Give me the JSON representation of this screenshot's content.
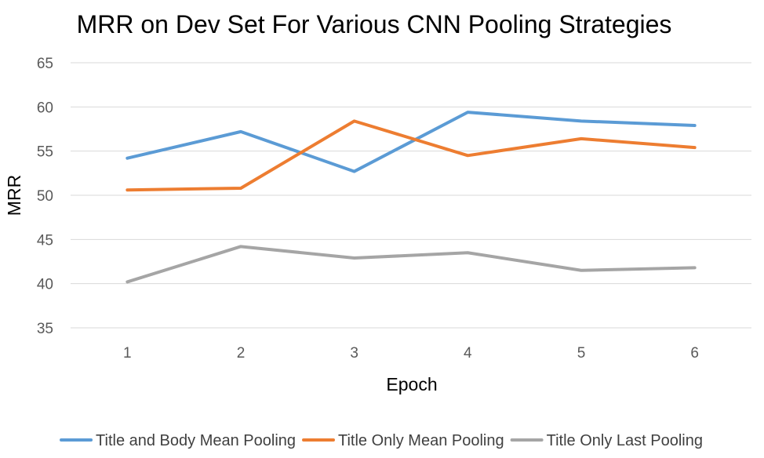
{
  "chart_data": {
    "type": "line",
    "title": "MRR on Dev Set For Various CNN Pooling Strategies",
    "xlabel": "Epoch",
    "ylabel": "MRR",
    "categories": [
      "1",
      "2",
      "3",
      "4",
      "5",
      "6"
    ],
    "ylim": [
      35,
      65
    ],
    "yticks": [
      35,
      40,
      45,
      50,
      55,
      60,
      65
    ],
    "grid": true,
    "legend_position": "bottom",
    "series": [
      {
        "name": "Title and Body Mean Pooling",
        "color": "#5b9bd5",
        "values": [
          54.2,
          57.2,
          52.7,
          59.4,
          58.4,
          57.9
        ]
      },
      {
        "name": "Title Only Mean Pooling",
        "color": "#ed7d31",
        "values": [
          50.6,
          50.8,
          58.4,
          54.5,
          56.4,
          55.4
        ]
      },
      {
        "name": "Title Only Last Pooling",
        "color": "#a5a5a5",
        "values": [
          40.2,
          44.2,
          42.9,
          43.5,
          41.5,
          41.8
        ]
      }
    ]
  }
}
